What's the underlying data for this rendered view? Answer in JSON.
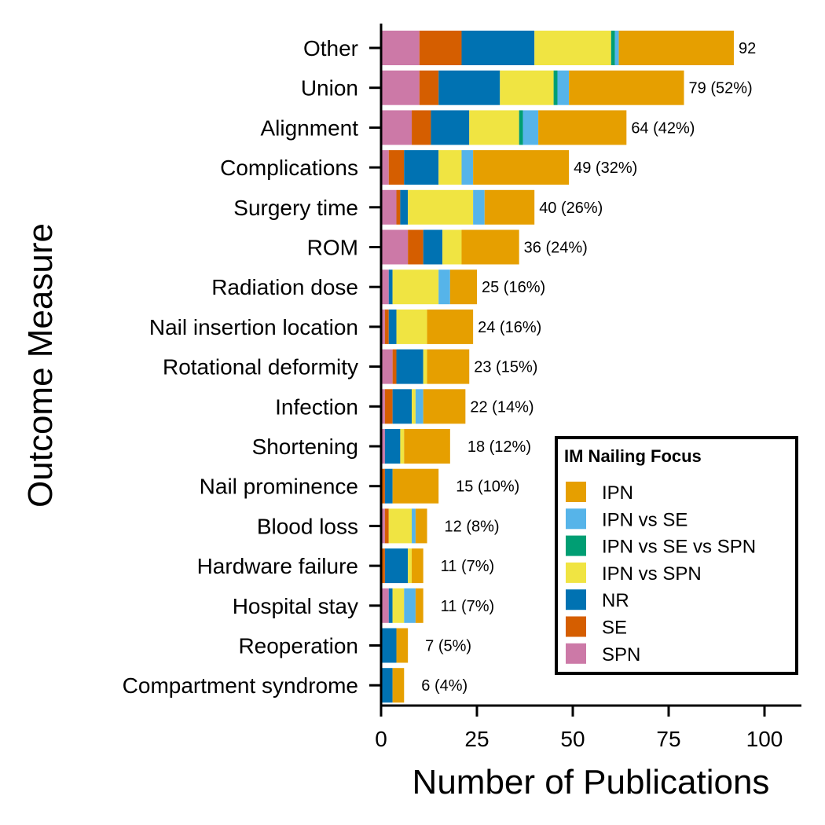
{
  "chart_data": {
    "type": "bar",
    "orientation": "horizontal",
    "stacked": true,
    "xlabel": "Number of Publications",
    "ylabel": "Outcome Measure",
    "xlim": [
      0,
      110
    ],
    "xticks": [
      0,
      25,
      50,
      75,
      100
    ],
    "grid": false,
    "legend_title": "IM Nailing Focus",
    "legend_position": "bottom-right",
    "stack_order": [
      "SPN",
      "SE",
      "NR",
      "IPN vs SPN",
      "IPN vs SE vs SPN",
      "IPN vs SE",
      "IPN"
    ],
    "categories": [
      "Other",
      "Union",
      "Alignment",
      "Complications",
      "Surgery time",
      "ROM",
      "Radiation dose",
      "Nail insertion location",
      "Rotational deformity",
      "Infection",
      "Shortening",
      "Nail prominence",
      "Blood loss",
      "Hardware failure",
      "Hospital stay",
      "Reoperation",
      "Compartment syndrome"
    ],
    "totals": [
      92,
      79,
      64,
      49,
      40,
      36,
      25,
      24,
      23,
      22,
      18,
      15,
      12,
      11,
      11,
      7,
      6
    ],
    "bar_labels": [
      "92",
      "79 (52%)",
      "64 (42%)",
      "49 (32%)",
      "40 (26%)",
      "36 (24%)",
      "25 (16%)",
      "24 (16%)",
      "23 (15%)",
      "22 (14%)",
      "18 (12%)",
      "15 (10%)",
      "12 (8%)",
      "11 (7%)",
      "11 (7%)",
      "7 (5%)",
      "6 (4%)"
    ],
    "series": [
      {
        "name": "IPN",
        "color": "#E69F00",
        "values": [
          30,
          30,
          23,
          25,
          13,
          15,
          7,
          12,
          11,
          11,
          12,
          12,
          3,
          3,
          2,
          3,
          3
        ]
      },
      {
        "name": "IPN vs SE",
        "color": "#56B4E9",
        "values": [
          1,
          3,
          4,
          3,
          3,
          0,
          3,
          0,
          0,
          2,
          0,
          0,
          1,
          0,
          3,
          0,
          0
        ]
      },
      {
        "name": "IPN vs SE vs SPN",
        "color": "#009E73",
        "values": [
          1,
          1,
          1,
          0,
          0,
          0,
          0,
          0,
          0,
          0,
          0,
          0,
          0,
          0,
          0,
          0,
          0
        ]
      },
      {
        "name": "IPN vs SPN",
        "color": "#F0E442",
        "values": [
          20,
          14,
          13,
          6,
          17,
          5,
          12,
          8,
          1,
          1,
          1,
          0,
          6,
          1,
          3,
          0,
          0
        ]
      },
      {
        "name": "NR",
        "color": "#0072B2",
        "values": [
          19,
          16,
          10,
          9,
          2,
          5,
          1,
          2,
          7,
          5,
          4,
          2,
          0,
          6,
          1,
          4,
          3
        ]
      },
      {
        "name": "SE",
        "color": "#D55E00",
        "values": [
          11,
          5,
          5,
          4,
          1,
          4,
          0,
          1,
          1,
          2,
          0,
          1,
          1,
          1,
          0,
          0,
          0
        ]
      },
      {
        "name": "SPN",
        "color": "#CC79A7",
        "values": [
          10,
          10,
          8,
          2,
          4,
          7,
          2,
          1,
          3,
          1,
          1,
          0,
          1,
          0,
          2,
          0,
          0
        ]
      }
    ],
    "legend_entries": [
      "IPN",
      "IPN vs SE",
      "IPN vs SE vs SPN",
      "IPN vs SPN",
      "NR",
      "SE",
      "SPN"
    ]
  }
}
